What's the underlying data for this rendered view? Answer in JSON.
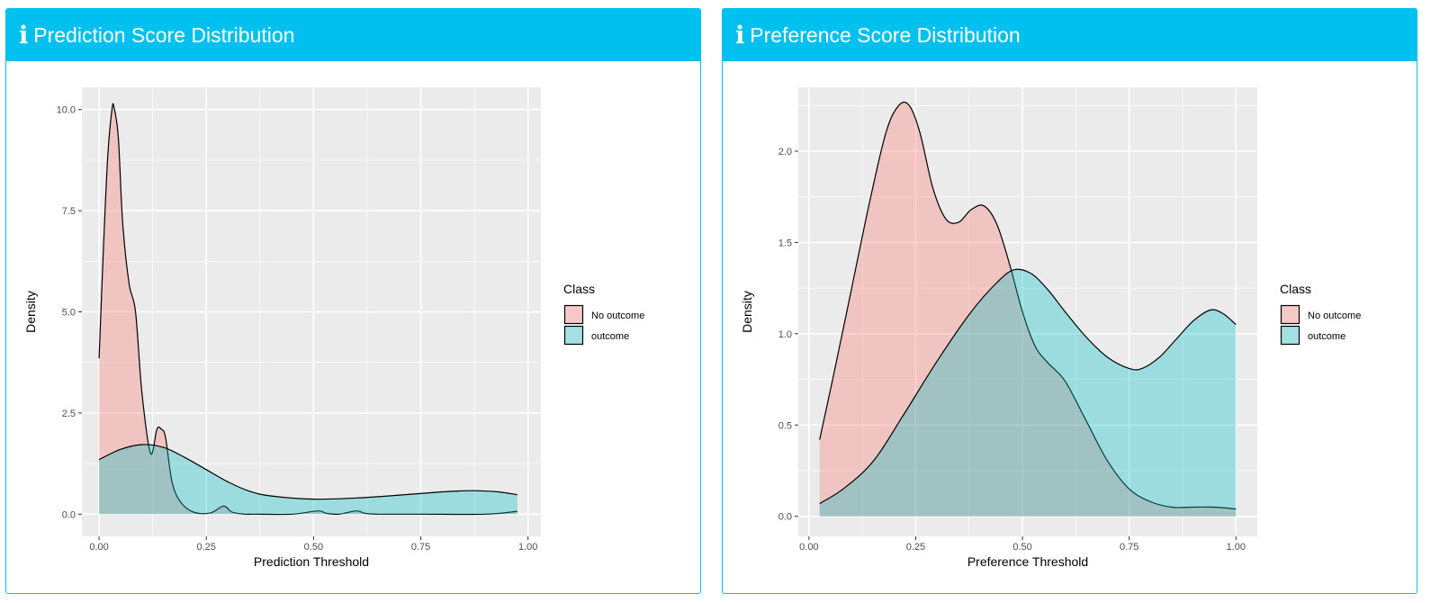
{
  "panels": [
    {
      "title": "Prediction Score Distribution",
      "icon": "info-icon",
      "chart_data": {
        "type": "area",
        "xlabel": "Prediction Threshold",
        "ylabel": "Density",
        "xlim": [
          -0.04,
          1.03
        ],
        "ylim": [
          -0.55,
          10.55
        ],
        "xticks": [
          0.0,
          0.25,
          0.5,
          0.75,
          1.0
        ],
        "xtick_labels": [
          "0.00",
          "0.25",
          "0.50",
          "0.75",
          "1.00"
        ],
        "yticks": [
          0.0,
          2.5,
          5.0,
          7.5,
          10.0
        ],
        "ytick_labels": [
          "0.0",
          "2.5",
          "5.0",
          "7.5",
          "10.0"
        ],
        "grid": true,
        "legend_title": "Class",
        "legend_position": "right",
        "series": [
          {
            "name": "No outcome",
            "color": "#F8766D",
            "x": [
              0.0,
              0.01,
              0.02,
              0.03,
              0.035,
              0.045,
              0.055,
              0.07,
              0.085,
              0.1,
              0.12,
              0.135,
              0.145,
              0.155,
              0.17,
              0.19,
              0.22,
              0.26,
              0.29,
              0.31,
              0.34,
              0.36,
              0.45,
              0.51,
              0.53,
              0.56,
              0.6,
              0.62,
              0.65,
              0.75,
              0.9,
              0.975
            ],
            "y": [
              3.85,
              6.5,
              8.8,
              10.0,
              10.05,
              9.3,
              7.2,
              5.7,
              5.0,
              3.0,
              1.5,
              2.1,
              2.1,
              1.9,
              0.8,
              0.3,
              0.05,
              0.03,
              0.2,
              0.05,
              0.0,
              0.0,
              0.0,
              0.08,
              0.02,
              0.0,
              0.08,
              0.02,
              0.0,
              0.0,
              0.0,
              0.07
            ]
          },
          {
            "name": "outcome",
            "color": "#00BFC4",
            "x": [
              0.0,
              0.05,
              0.1,
              0.15,
              0.2,
              0.25,
              0.3,
              0.35,
              0.4,
              0.5,
              0.6,
              0.7,
              0.8,
              0.87,
              0.93,
              0.975
            ],
            "y": [
              1.35,
              1.6,
              1.72,
              1.65,
              1.4,
              1.1,
              0.8,
              0.57,
              0.45,
              0.37,
              0.4,
              0.47,
              0.55,
              0.58,
              0.55,
              0.48
            ]
          }
        ]
      }
    },
    {
      "title": "Preference Score Distribution",
      "icon": "info-icon",
      "chart_data": {
        "type": "area",
        "xlabel": "Preference Threshold",
        "ylabel": "Density",
        "xlim": [
          -0.025,
          1.05
        ],
        "ylim": [
          -0.11,
          2.35
        ],
        "xticks": [
          0.0,
          0.25,
          0.5,
          0.75,
          1.0
        ],
        "xtick_labels": [
          "0.00",
          "0.25",
          "0.50",
          "0.75",
          "1.00"
        ],
        "yticks": [
          0.0,
          0.5,
          1.0,
          1.5,
          2.0
        ],
        "ytick_labels": [
          "0.0",
          "0.5",
          "1.0",
          "1.5",
          "2.0"
        ],
        "grid": true,
        "legend_title": "Class",
        "legend_position": "right",
        "series": [
          {
            "name": "No outcome",
            "color": "#F8766D",
            "x": [
              0.025,
              0.06,
              0.1,
              0.14,
              0.18,
              0.21,
              0.235,
              0.26,
              0.29,
              0.32,
              0.35,
              0.38,
              0.41,
              0.44,
              0.47,
              0.5,
              0.53,
              0.56,
              0.6,
              0.65,
              0.7,
              0.75,
              0.8,
              0.85,
              0.9,
              0.95,
              1.0
            ],
            "y": [
              0.42,
              0.8,
              1.25,
              1.7,
              2.1,
              2.25,
              2.25,
              2.1,
              1.8,
              1.63,
              1.61,
              1.68,
              1.7,
              1.6,
              1.38,
              1.12,
              0.93,
              0.84,
              0.74,
              0.52,
              0.3,
              0.15,
              0.08,
              0.05,
              0.05,
              0.05,
              0.04
            ]
          },
          {
            "name": "outcome",
            "color": "#00BFC4",
            "x": [
              0.025,
              0.08,
              0.15,
              0.22,
              0.3,
              0.38,
              0.44,
              0.48,
              0.52,
              0.56,
              0.6,
              0.65,
              0.7,
              0.75,
              0.78,
              0.82,
              0.86,
              0.9,
              0.94,
              0.97,
              1.0
            ],
            "y": [
              0.07,
              0.15,
              0.3,
              0.55,
              0.85,
              1.12,
              1.28,
              1.35,
              1.33,
              1.24,
              1.12,
              0.98,
              0.87,
              0.81,
              0.81,
              0.87,
              0.97,
              1.07,
              1.13,
              1.11,
              1.05
            ]
          }
        ]
      }
    }
  ]
}
